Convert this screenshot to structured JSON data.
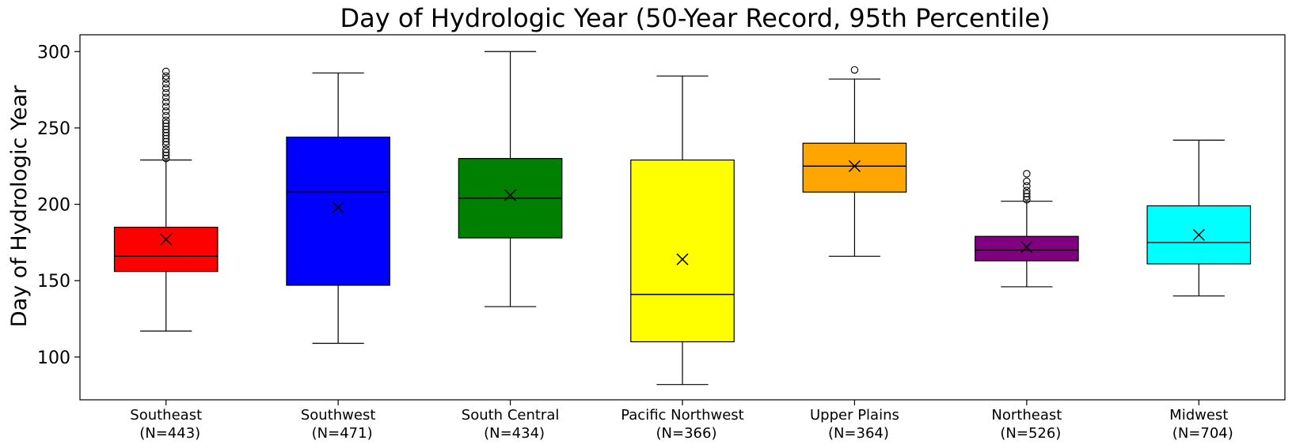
{
  "chart_data": {
    "type": "boxplot",
    "title": "Day of Hydrologic Year (50-Year Record, 95th Percentile)",
    "ylabel": "Day of Hydrologic Year",
    "xlabel": "",
    "ylim": [
      72,
      311
    ],
    "yticks": [
      100,
      150,
      200,
      250,
      300
    ],
    "grid": false,
    "categories": [
      {
        "name": "Southeast",
        "n_label": "(N=443)",
        "color": "#ff0000",
        "whisker_low": 117,
        "q1": 156,
        "median": 166,
        "q3": 185,
        "whisker_high": 229,
        "mean": 177,
        "outliers": [
          230,
          232,
          234,
          236,
          239,
          241,
          243,
          245,
          247,
          249,
          251,
          253,
          255,
          258,
          261,
          264,
          267,
          270,
          273,
          276,
          279,
          282,
          284,
          287
        ]
      },
      {
        "name": "Southwest",
        "n_label": "(N=471)",
        "color": "#0000ff",
        "whisker_low": 109,
        "q1": 147,
        "median": 208,
        "q3": 244,
        "whisker_high": 286,
        "mean": 198,
        "outliers": []
      },
      {
        "name": "South Central",
        "n_label": "(N=434)",
        "color": "#008000",
        "whisker_low": 133,
        "q1": 178,
        "median": 204,
        "q3": 230,
        "whisker_high": 300,
        "mean": 206,
        "outliers": []
      },
      {
        "name": "Pacific Northwest",
        "n_label": "(N=366)",
        "color": "#ffff00",
        "whisker_low": 82,
        "q1": 110,
        "median": 141,
        "q3": 229,
        "whisker_high": 284,
        "mean": 164,
        "outliers": []
      },
      {
        "name": "Upper Plains",
        "n_label": "(N=364)",
        "color": "#ffa500",
        "whisker_low": 166,
        "q1": 208,
        "median": 225,
        "q3": 240,
        "whisker_high": 282,
        "mean": 225,
        "outliers": [
          288
        ]
      },
      {
        "name": "Northeast",
        "n_label": "(N=526)",
        "color": "#800080",
        "whisker_low": 146,
        "q1": 163,
        "median": 170,
        "q3": 179,
        "whisker_high": 202,
        "mean": 172,
        "outliers": [
          203,
          205,
          207,
          209,
          212,
          215,
          220
        ]
      },
      {
        "name": "Midwest",
        "n_label": "(N=704)",
        "color": "#00ffff",
        "whisker_low": 140,
        "q1": 161,
        "median": 175,
        "q3": 199,
        "whisker_high": 242,
        "mean": 180,
        "outliers": []
      }
    ]
  }
}
